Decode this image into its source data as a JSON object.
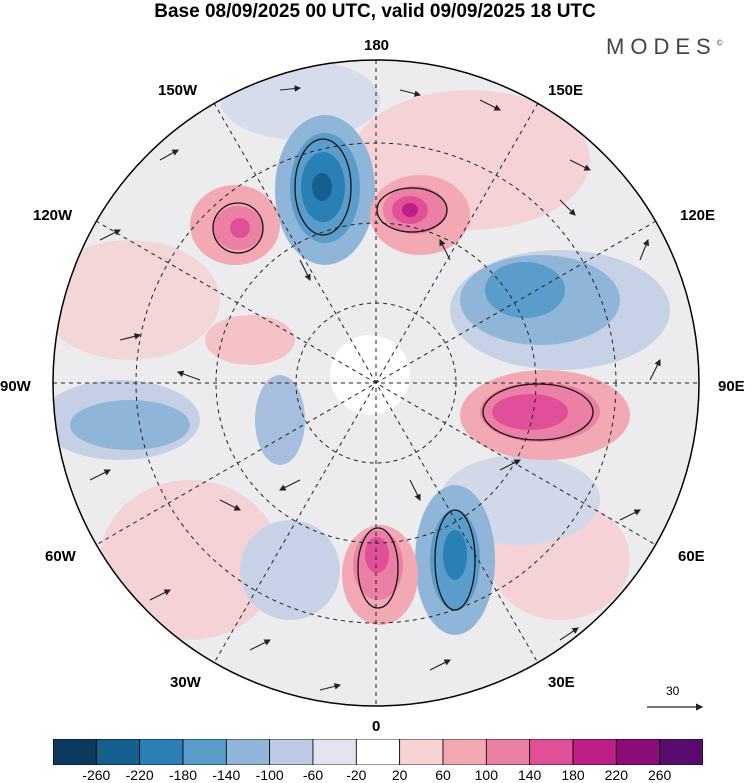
{
  "header": {
    "title": "Base 08/09/2025 00 UTC, valid 09/09/2025 18 UTC",
    "brand": "MODES",
    "brand_mark": "©"
  },
  "map": {
    "longitude_labels": {
      "lon_180": "180",
      "lon_150e": "150E",
      "lon_120e": "120E",
      "lon_90e": "90E",
      "lon_60e": "60E",
      "lon_30e": "30E",
      "lon_0": "0",
      "lon_30w": "30W",
      "lon_60w": "60W",
      "lon_90w": "90W",
      "lon_120w": "120W",
      "lon_150w": "150W"
    },
    "vector_scale_label": "30"
  },
  "colorbar": {
    "tick_labels": [
      "-260",
      "-220",
      "-180",
      "-140",
      "-100",
      "-60",
      "-20",
      "20",
      "60",
      "100",
      "140",
      "180",
      "220",
      "260"
    ],
    "colors": [
      "#0b3a5e",
      "#145f8e",
      "#2a7fb4",
      "#5a9dca",
      "#8fb6d9",
      "#bccbe3",
      "#e4e4f0",
      "#ffffff",
      "#f7d3d3",
      "#f2a9b3",
      "#ec7fa4",
      "#e04f98",
      "#bc1f86",
      "#8c0b78",
      "#5a0c6e"
    ]
  }
}
